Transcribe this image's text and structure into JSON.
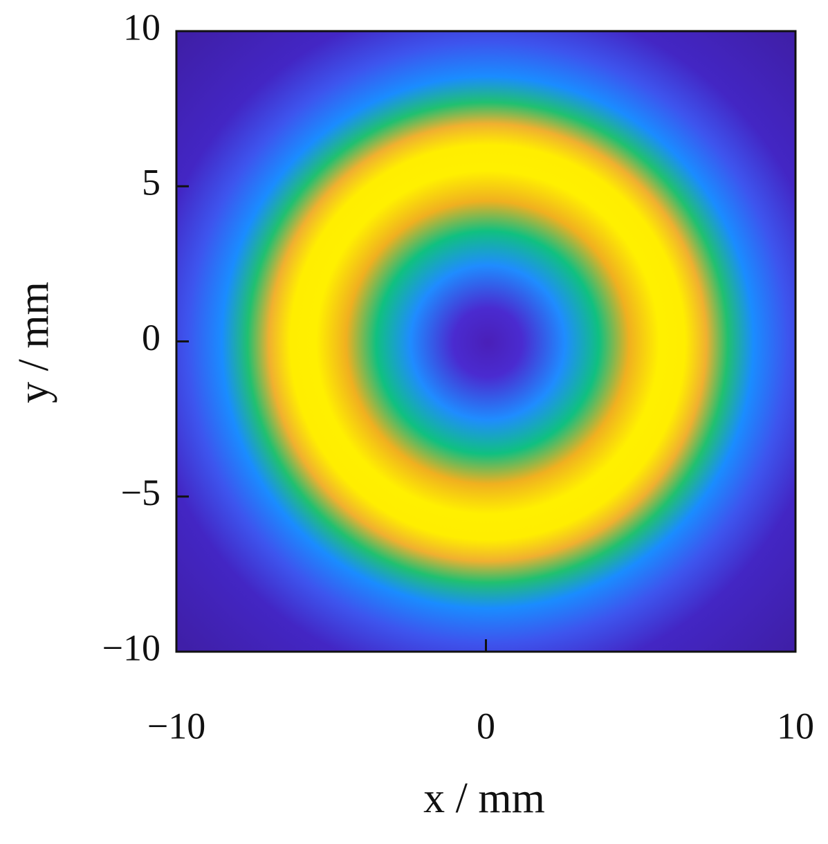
{
  "chart_data": {
    "type": "heatmap",
    "xlabel": "x / mm",
    "ylabel": "y / mm",
    "xlim": [
      -10,
      10
    ],
    "ylim": [
      -10,
      10
    ],
    "xticks": [
      {
        "value": -10,
        "label": "−10"
      },
      0,
      10
    ],
    "yticks": [
      {
        "value": -10,
        "label": "−10"
      },
      {
        "value": -5,
        "label": "−5"
      },
      0,
      5,
      10
    ]
  }
}
